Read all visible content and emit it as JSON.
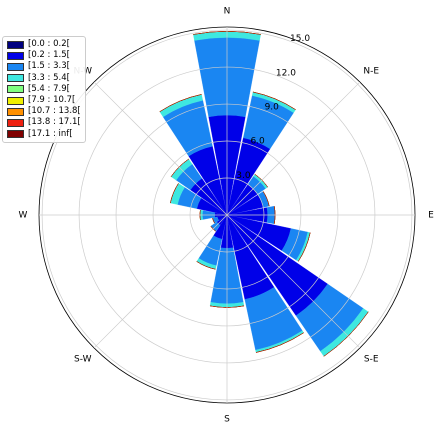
{
  "chart_data": {
    "type": "windrose",
    "categories": [
      "N",
      "NNE",
      "NE",
      "ENE",
      "E",
      "ESE",
      "SE",
      "SSE",
      "S",
      "SSW",
      "SW",
      "WSW",
      "W",
      "WNW",
      "NW",
      "NNW"
    ],
    "direction_labels": [
      "N",
      "N-E",
      "E",
      "S-E",
      "S",
      "S-W",
      "W",
      "N-W"
    ],
    "ylim": [
      0,
      15.25
    ],
    "yticks": [
      {
        "value": 3,
        "label": "3.0"
      },
      {
        "value": 6,
        "label": "6.0"
      },
      {
        "value": 9,
        "label": "9.0"
      },
      {
        "value": 12,
        "label": "12.0"
      },
      {
        "value": 15,
        "label": "15.0"
      }
    ],
    "grid": true,
    "legend": "upper-left",
    "series": [
      {
        "name": "[0.0 : 0.2[",
        "color": "#000080",
        "values": [
          0.1,
          0.1,
          0.1,
          0.1,
          0.1,
          0.1,
          0.1,
          0.1,
          0.1,
          0.1,
          0.1,
          0.1,
          0.1,
          0.1,
          0.1,
          0.1
        ]
      },
      {
        "name": "[0.2 : 1.5[",
        "color": "#0000e8",
        "values": [
          8.0,
          6.3,
          2.9,
          2.9,
          3.2,
          5.2,
          9.8,
          6.9,
          2.6,
          1.9,
          0.9,
          0.7,
          0.9,
          2.4,
          3.5,
          5.6
        ]
      },
      {
        "name": "[1.5 : 3.3[",
        "color": "#1a86f2",
        "values": [
          6.3,
          3.5,
          0.8,
          0.5,
          0.6,
          1.4,
          3.5,
          4.2,
          4.5,
          2.2,
          0.6,
          0.4,
          1.0,
          1.6,
          1.4,
          3.8
        ]
      },
      {
        "name": "[3.3 : 5.4[",
        "color": "#3ee8e0",
        "values": [
          0.5,
          0.3,
          0.2,
          0,
          0,
          0.2,
          0.5,
          0.2,
          0.3,
          0.3,
          0,
          0,
          0.2,
          0.6,
          0.5,
          0.5
        ]
      },
      {
        "name": "[5.4 : 7.9[",
        "color": "#80ff80",
        "values": [
          0,
          0,
          0,
          0,
          0,
          0,
          0,
          0,
          0,
          0,
          0,
          0,
          0,
          0,
          0,
          0
        ]
      },
      {
        "name": "[7.9 : 10.7[",
        "color": "#f0f000",
        "values": [
          0,
          0,
          0,
          0,
          0,
          0,
          0,
          0,
          0,
          0,
          0,
          0,
          0,
          0,
          0,
          0
        ]
      },
      {
        "name": "[10.7 : 13.8[",
        "color": "#ff9000",
        "values": [
          0,
          0,
          0,
          0,
          0,
          0,
          0,
          0,
          0,
          0,
          0,
          0,
          0,
          0,
          0,
          0
        ]
      },
      {
        "name": "[13.8 : 17.1[",
        "color": "#ee2010",
        "values": [
          0,
          0,
          0,
          0,
          0,
          0,
          0,
          0,
          0,
          0,
          0,
          0,
          0,
          0,
          0,
          0
        ]
      },
      {
        "name": "[17.1 : inf[",
        "color": "#800000",
        "values": [
          0,
          0,
          0,
          0,
          0,
          0,
          0,
          0,
          0,
          0,
          0,
          0,
          0,
          0,
          0,
          0
        ]
      }
    ]
  }
}
